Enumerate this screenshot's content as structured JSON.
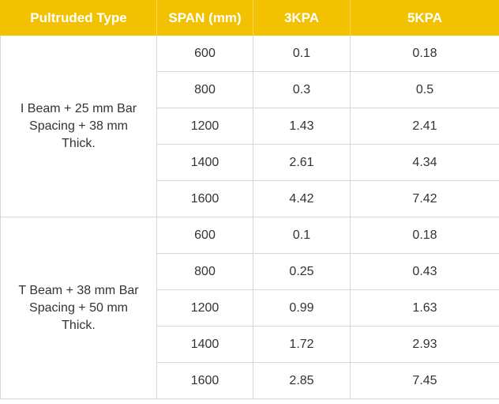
{
  "table": {
    "header": [
      "Pultruded Type",
      "SPAN (mm)",
      "3KPA",
      "5KPA"
    ],
    "groups": [
      {
        "type": "I Beam + 25 mm Bar Spacing + 38 mm Thick.",
        "rows": [
          [
            "600",
            "0.1",
            "0.18"
          ],
          [
            "800",
            "0.3",
            "0.5"
          ],
          [
            "1200",
            "1.43",
            "2.41"
          ],
          [
            "1400",
            "2.61",
            "4.34"
          ],
          [
            "1600",
            "4.42",
            "7.42"
          ]
        ]
      },
      {
        "type": "T Beam + 38 mm Bar Spacing + 50 mm Thick.",
        "rows": [
          [
            "600",
            "0.1",
            "0.18"
          ],
          [
            "800",
            "0.25",
            "0.43"
          ],
          [
            "1200",
            "0.99",
            "1.63"
          ],
          [
            "1400",
            "1.72",
            "2.93"
          ],
          [
            "1600",
            "2.85",
            "7.45"
          ]
        ]
      }
    ]
  }
}
